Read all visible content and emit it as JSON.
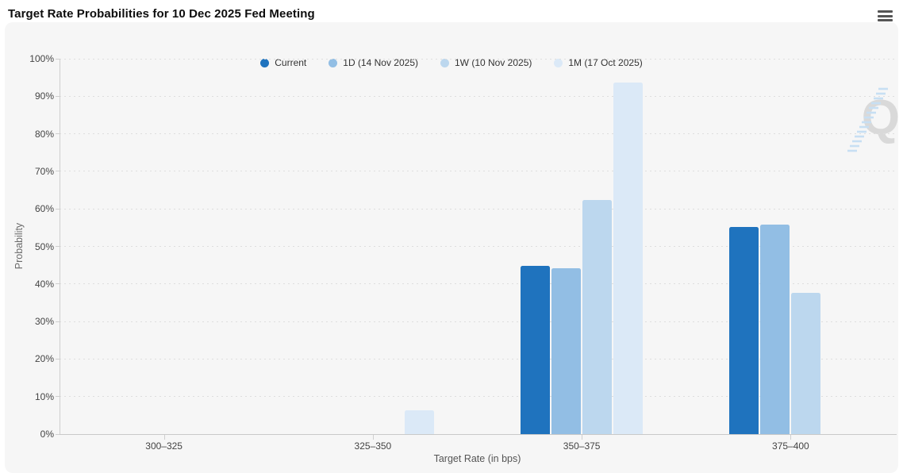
{
  "title": "Target Rate Probabilities for 10 Dec 2025 Fed Meeting",
  "menu": {
    "tooltip": "Chart context menu"
  },
  "watermark": {
    "letter": "Q"
  },
  "colors": {
    "page_bg": "#ffffff",
    "card_bg": "#f6f6f6",
    "axis_line": "#cfcfcf",
    "grid_dots": "#dedede",
    "tick_text": "#444444",
    "axis_title_text": "#666666"
  },
  "chart_data": {
    "type": "bar",
    "title": "Target Rate Probabilities for 10 Dec 2025 Fed Meeting",
    "xlabel": "Target Rate (in bps)",
    "ylabel": "Probability",
    "categories": [
      "300–325",
      "325–350",
      "350–375",
      "375–400"
    ],
    "series": [
      {
        "name": "Current",
        "color": "#1F73BE",
        "values": [
          0,
          0,
          44.8,
          55.2
        ]
      },
      {
        "name": "1D (14 Nov 2025)",
        "color": "#92BEE4",
        "values": [
          0,
          0,
          44.2,
          55.8
        ]
      },
      {
        "name": "1W (10 Nov 2025)",
        "color": "#BCD7EE",
        "values": [
          0,
          0,
          62.3,
          37.7
        ]
      },
      {
        "name": "1M (17 Oct 2025)",
        "color": "#DBE9F7",
        "values": [
          0,
          6.3,
          93.7,
          0
        ]
      }
    ],
    "ylim": [
      0,
      100
    ],
    "y_ticks": [
      "0%",
      "10%",
      "20%",
      "30%",
      "40%",
      "50%",
      "60%",
      "70%",
      "80%",
      "90%",
      "100%"
    ],
    "grid": "dotted horizontal",
    "legend_position": "top-center"
  }
}
